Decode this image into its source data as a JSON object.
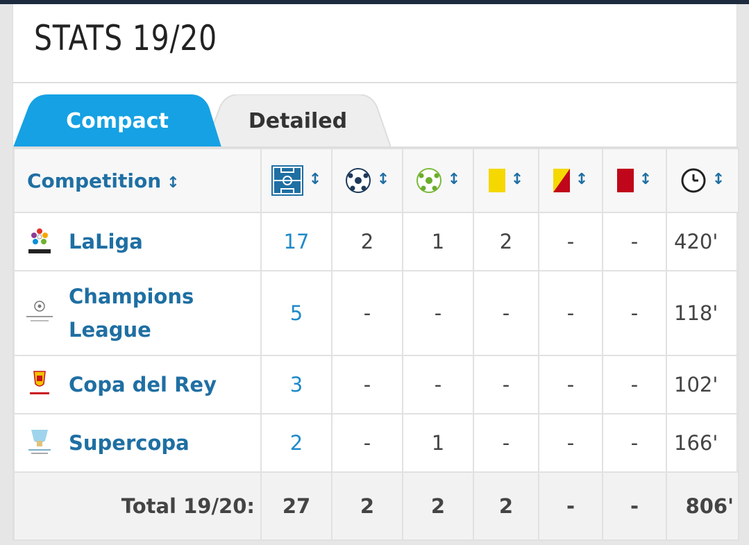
{
  "header": {
    "title": "STATS 19/20"
  },
  "tabs": [
    {
      "label": "Compact",
      "active": true
    },
    {
      "label": "Detailed",
      "active": false
    }
  ],
  "table": {
    "competition_header": "Competition",
    "sort_symbol": "↕",
    "column_icons": [
      "pitch-icon",
      "goal-ball-icon",
      "assist-ball-icon",
      "yellow-card-icon",
      "yellow-red-card-icon",
      "red-card-icon",
      "clock-icon"
    ],
    "rows": [
      {
        "competition": "LaLiga",
        "logo": "laliga-logo",
        "apps": "17",
        "goals": "2",
        "assists": "1",
        "yellow": "2",
        "yellow_red": "-",
        "red": "-",
        "minutes": "420'"
      },
      {
        "competition": "Champions League",
        "logo": "champions-league-logo",
        "apps": "5",
        "goals": "-",
        "assists": "-",
        "yellow": "-",
        "yellow_red": "-",
        "red": "-",
        "minutes": "118'"
      },
      {
        "competition": "Copa del Rey",
        "logo": "copa-del-rey-logo",
        "apps": "3",
        "goals": "-",
        "assists": "-",
        "yellow": "-",
        "yellow_red": "-",
        "red": "-",
        "minutes": "102'"
      },
      {
        "competition": "Supercopa",
        "logo": "supercopa-logo",
        "apps": "2",
        "goals": "-",
        "assists": "1",
        "yellow": "-",
        "yellow_red": "-",
        "red": "-",
        "minutes": "166'"
      }
    ],
    "total": {
      "label": "Total 19/20:",
      "apps": "27",
      "goals": "2",
      "assists": "2",
      "yellow": "2",
      "yellow_red": "-",
      "red": "-",
      "minutes": "806'"
    }
  },
  "colors": {
    "accent": "#15a1e3",
    "link": "#1f6fa3",
    "yellow_card": "#f5d800",
    "red_card": "#c0061a"
  }
}
